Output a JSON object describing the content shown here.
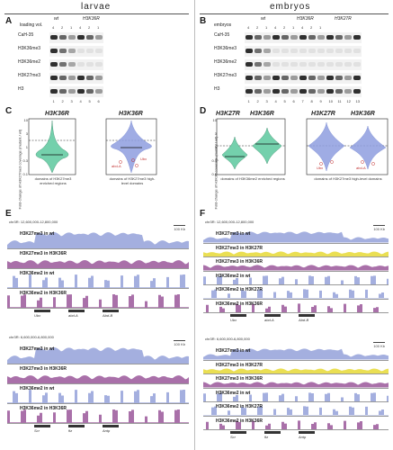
{
  "headers": {
    "left": "larvae",
    "right": "embryos"
  },
  "panels": {
    "A": "A",
    "B": "B",
    "C": "C",
    "D": "D",
    "E": "E",
    "F": "F"
  },
  "blotA": {
    "genotypes": [
      "wt",
      "H3K36R"
    ],
    "loading_label": "loading vol.",
    "ratio_labels": [
      "4",
      "2",
      "1",
      "4",
      "2",
      "1"
    ],
    "antibodies": [
      "CaH-35",
      "H3K36me3",
      "H3K36me2",
      "H3K27me3",
      "H3"
    ],
    "lanes": [
      "1",
      "2",
      "3",
      "4",
      "5",
      "6"
    ]
  },
  "blotB": {
    "genotypes": [
      "wt",
      "H3K36R",
      "H3K27R"
    ],
    "loading_label": "embryos",
    "ratio_labels": [
      "4",
      "2",
      "1",
      "4",
      "2",
      "1",
      "4",
      "2",
      "1"
    ],
    "antibodies": [
      "CaH-35",
      "H3K36me3",
      "H3K36me2",
      "H3K27me3",
      "H3"
    ],
    "lanes": [
      "1",
      "2",
      "3",
      "4",
      "5",
      "6",
      "7",
      "8",
      "9",
      "10",
      "11",
      "12",
      "13"
    ]
  },
  "panelC": {
    "titles": [
      "H3K36R",
      "H3K36R"
    ],
    "ylabel": "Fold-change of H3K27me3 coverage (mutant / wt)",
    "yticks": [
      "10",
      "3",
      "1",
      "0.3",
      "0.1"
    ],
    "xlabel_left": "domains of H3K27me3 enriched regions",
    "xlabel_right": "domains of H3K27me3 high-level domains",
    "gene_labels": [
      "Ubx",
      "abd-A",
      "Abd-B",
      "Antp",
      "dpp"
    ]
  },
  "panelD": {
    "titles": [
      "H3K27R",
      "H3K36R",
      "H3K27R",
      "H3K36R"
    ],
    "ylabel": "Fold-change of H3K36 coverage (mutant / wt)",
    "yticks": [
      "10",
      "3",
      "1",
      "0.3",
      "0.1"
    ],
    "xlabel_left": "domains of H3K36me2 enriched regions",
    "xlabel_right": "domains of H3K27me3 high-level domains",
    "gene_labels": [
      "Ubx",
      "abd-A",
      "Abd-B",
      "Antp",
      "Ubx",
      "abd-A"
    ]
  },
  "panelE": {
    "top": {
      "coord": "chr3R: 12,600,000-12,800,000",
      "scale": "100 Kb",
      "tracks": [
        "H3K27me3 in wt",
        "H3K27me3 in H3K36R",
        "H3K36me2 in wt",
        "H3K36me2 in H3K36R"
      ],
      "genes": [
        "Ubx",
        "abd-A",
        "Abd-B"
      ]
    },
    "bottom": {
      "coord": "chr3R: 6,600,000-6,800,000",
      "scale": "100 Kb",
      "tracks": [
        "H3K27me3 in wt",
        "H3K27me3 in H3K36R",
        "H3K36me2 in wt",
        "H3K36me2 in H3K36R"
      ],
      "genes": [
        "Scr",
        "ftz",
        "Antp"
      ]
    }
  },
  "panelF": {
    "top": {
      "coord": "chr3R: 12,600,000-12,800,000",
      "scale": "100 Kb",
      "tracks": [
        "H3K27me3 in wt",
        "H3K27me3 in H3K27R",
        "H3K27me3 in H3K36R",
        "H3K36me2 in wt",
        "H3K36me2 in H3K27R",
        "H3K36me2 in H3K36R"
      ],
      "genes": [
        "Ubx",
        "abd-A",
        "Abd-B"
      ]
    },
    "bottom": {
      "coord": "chr3R: 6,600,000-6,800,000",
      "scale": "100 Kb",
      "tracks": [
        "H3K27me3 in wt",
        "H3K27me3 in H3K27R",
        "H3K27me3 in H3K36R",
        "H3K36me2 in wt",
        "H3K36me2 in H3K27R",
        "H3K36me2 in H3K36R"
      ],
      "genes": [
        "Scr",
        "ftz",
        "Antp"
      ]
    }
  },
  "colors": {
    "wt": "#9aa6dc",
    "k36r": "#a060a0",
    "k27r": "#e8dc40",
    "violin": "#74d0ac",
    "violin_blue": "#5e72c8"
  }
}
